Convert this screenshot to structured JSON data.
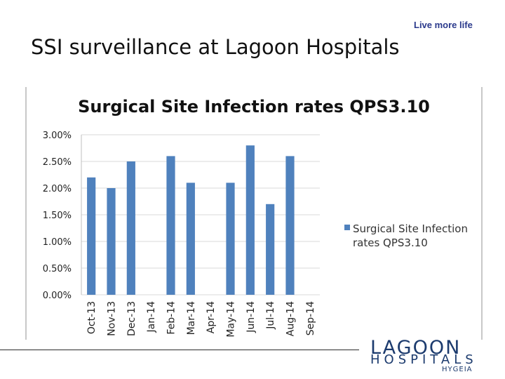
{
  "header": {
    "tagline": "Live more life",
    "title": "SSI surveillance at Lagoon Hospitals"
  },
  "logo": {
    "name": "LAGOON",
    "subtitle": "HOSPITALS",
    "sub2": "HYGEIA"
  },
  "colors": {
    "bar": "#4f81bd",
    "grid": "#d9d9d9",
    "title_text": "#111111",
    "logo": "#1c3b6e"
  },
  "chart_data": {
    "type": "bar",
    "title": "Surgical Site Infection rates QPS3.10",
    "categories": [
      "Oct-13",
      "Nov-13",
      "Dec-13",
      "Jan-14",
      "Feb-14",
      "Mar-14",
      "Apr-14",
      "May-14",
      "Jun-14",
      "Jul-14",
      "Aug-14",
      "Sep-14"
    ],
    "series": [
      {
        "name": "Surgical Site Infection rates QPS3.10",
        "values": [
          2.2,
          2.0,
          2.5,
          null,
          2.6,
          2.1,
          null,
          2.1,
          2.8,
          1.7,
          2.6,
          null
        ]
      }
    ],
    "yticks": [
      "0.00%",
      "0.50%",
      "1.00%",
      "1.50%",
      "2.00%",
      "2.50%",
      "3.00%"
    ],
    "ylim": [
      0,
      3.0
    ],
    "xlabel": "",
    "ylabel": "",
    "grid": true,
    "legend_position": "right",
    "legend_text": "Surgical Site Infection rates QPS3.10"
  }
}
